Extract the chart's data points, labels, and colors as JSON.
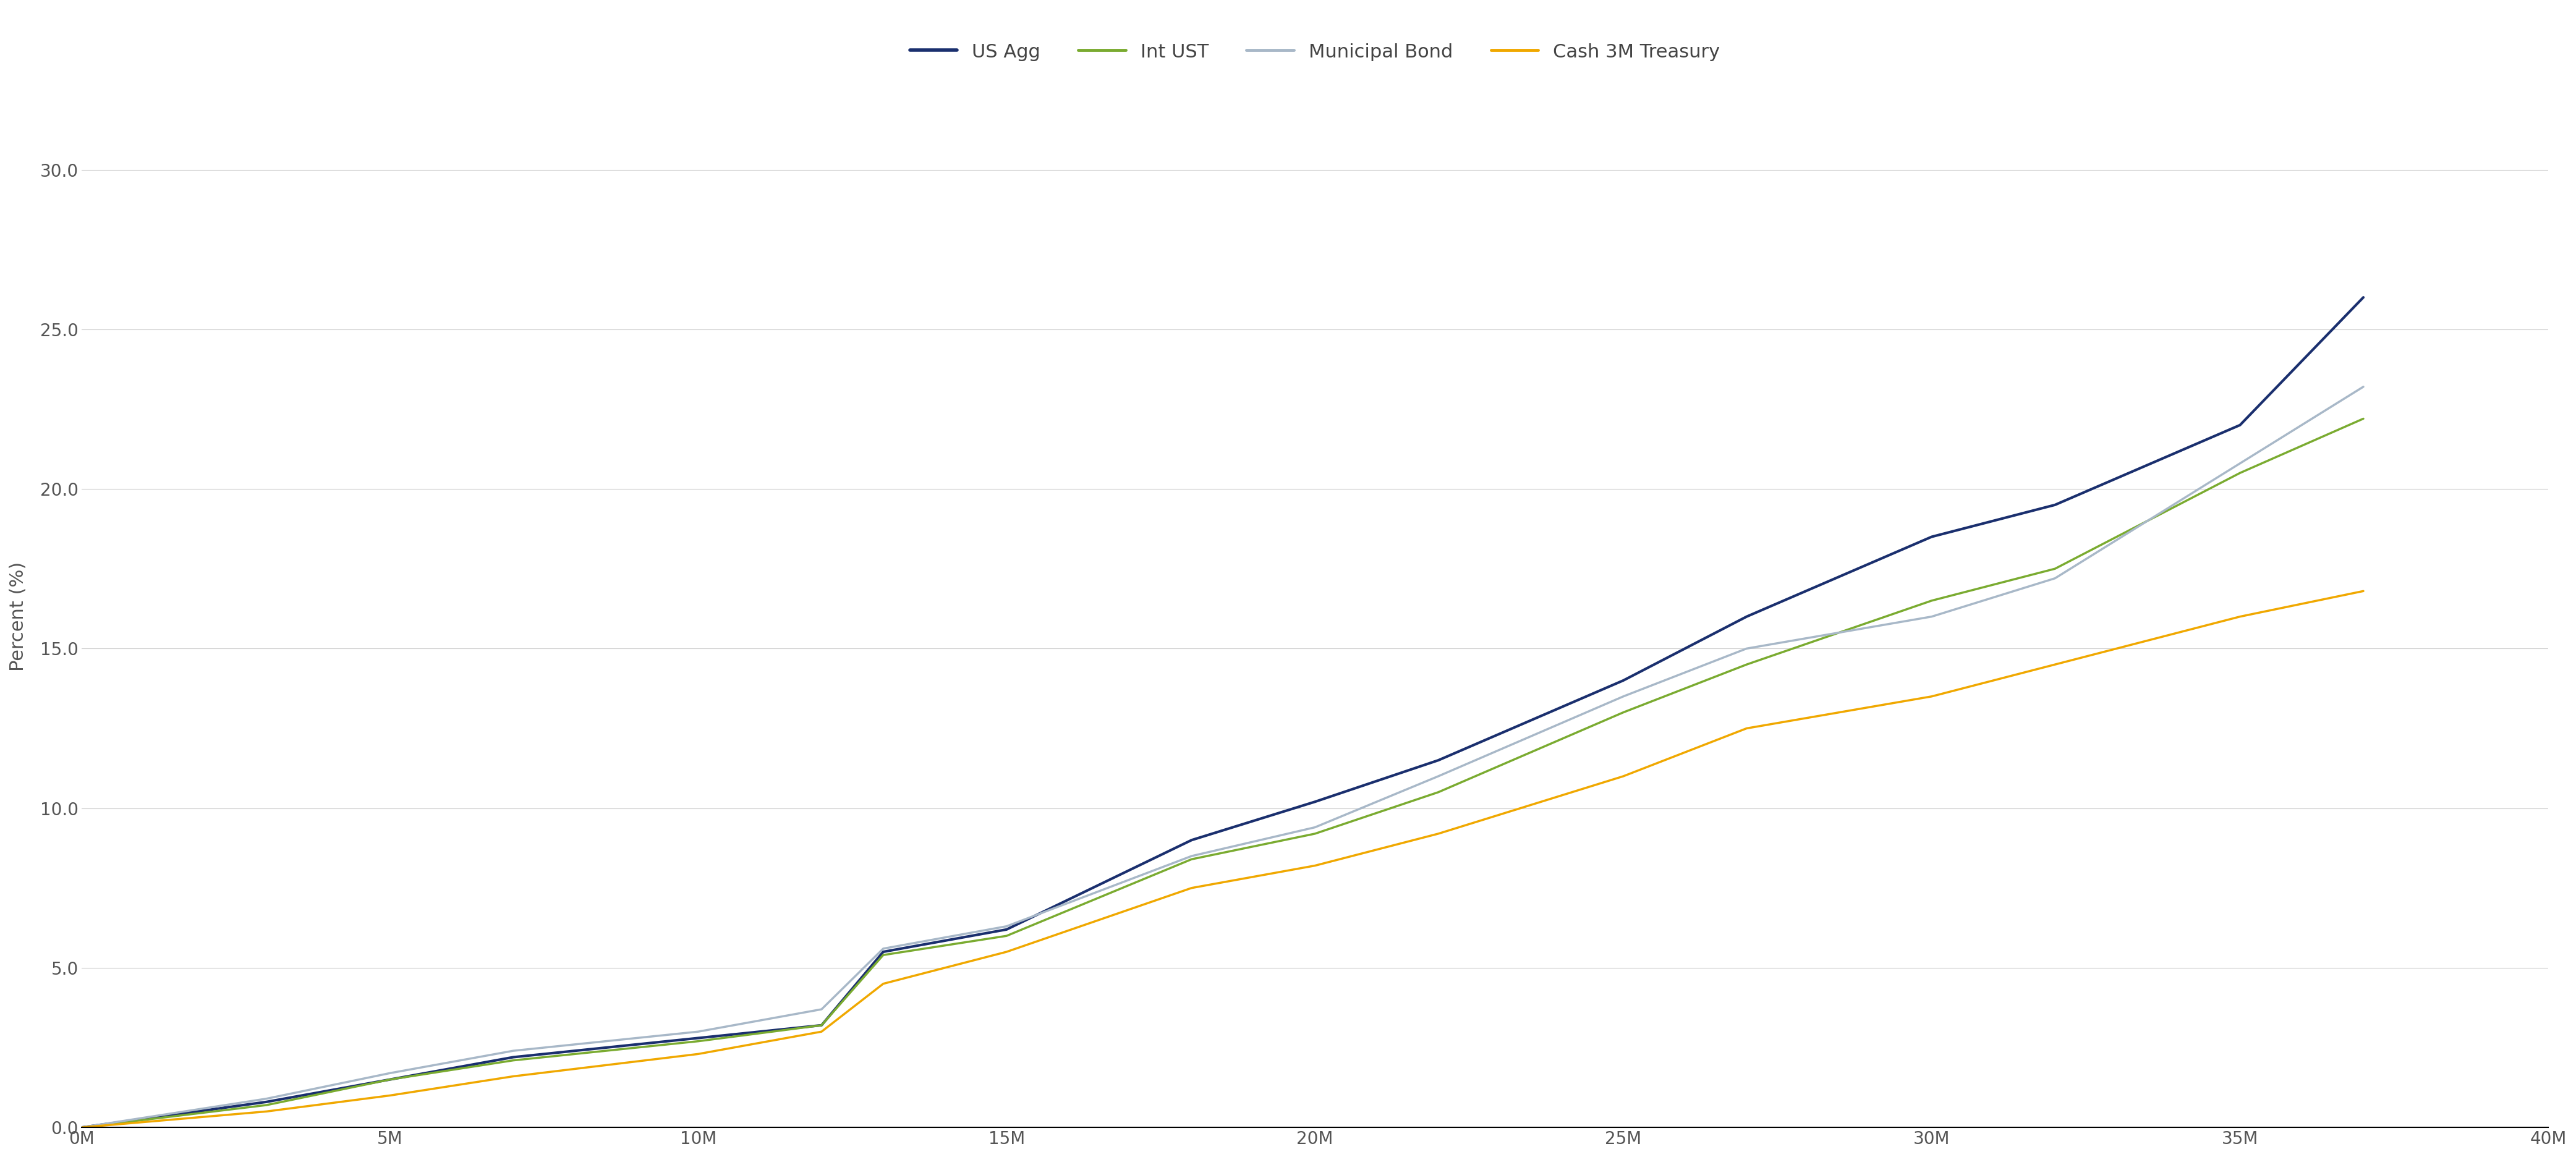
{
  "series": {
    "US Agg": {
      "x": [
        0,
        3,
        5,
        7,
        10,
        12,
        13,
        15,
        18,
        20,
        22,
        25,
        27,
        30,
        32,
        35,
        37
      ],
      "y": [
        0.0,
        0.8,
        1.5,
        2.2,
        2.8,
        3.2,
        5.5,
        6.2,
        9.0,
        10.2,
        11.5,
        14.0,
        16.0,
        18.5,
        19.5,
        22.0,
        26.0
      ],
      "color": "#1a2f6e",
      "linewidth": 3.0,
      "label": "US Agg"
    },
    "Int UST": {
      "x": [
        0,
        3,
        5,
        7,
        10,
        12,
        13,
        15,
        18,
        20,
        22,
        25,
        27,
        30,
        32,
        35,
        37
      ],
      "y": [
        0.0,
        0.7,
        1.5,
        2.1,
        2.7,
        3.2,
        5.4,
        6.0,
        8.4,
        9.2,
        10.5,
        13.0,
        14.5,
        16.5,
        17.5,
        20.5,
        22.2
      ],
      "color": "#7aab30",
      "linewidth": 2.5,
      "label": "Int UST"
    },
    "Municipal Bond": {
      "x": [
        0,
        3,
        5,
        7,
        10,
        12,
        13,
        15,
        18,
        20,
        22,
        25,
        27,
        30,
        32,
        35,
        37
      ],
      "y": [
        0.0,
        0.9,
        1.7,
        2.4,
        3.0,
        3.7,
        5.6,
        6.3,
        8.5,
        9.4,
        11.0,
        13.5,
        15.0,
        16.0,
        17.2,
        20.8,
        23.2
      ],
      "color": "#a8b8c8",
      "linewidth": 2.5,
      "label": "Municipal Bond"
    },
    "Cash 3M Treasury": {
      "x": [
        0,
        3,
        5,
        7,
        10,
        12,
        13,
        15,
        18,
        20,
        22,
        25,
        27,
        30,
        32,
        35,
        37
      ],
      "y": [
        0.0,
        0.5,
        1.0,
        1.6,
        2.3,
        3.0,
        4.5,
        5.5,
        7.5,
        8.2,
        9.2,
        11.0,
        12.5,
        13.5,
        14.5,
        16.0,
        16.8
      ],
      "color": "#f0a800",
      "linewidth": 2.5,
      "label": "Cash 3M Treasury"
    }
  },
  "series_order": [
    "US Agg",
    "Int UST",
    "Municipal Bond",
    "Cash 3M Treasury"
  ],
  "ylabel": "Percent (%)",
  "ylim": [
    0.0,
    32.0
  ],
  "xlim": [
    0,
    40
  ],
  "yticks": [
    0.0,
    5.0,
    10.0,
    15.0,
    20.0,
    25.0,
    30.0
  ],
  "xticks": [
    0,
    5,
    10,
    15,
    20,
    25,
    30,
    35,
    40
  ],
  "xtick_labels": [
    "0M",
    "5M",
    "10M",
    "15M",
    "20M",
    "25M",
    "30M",
    "35M",
    "40M"
  ],
  "background_color": "#ffffff",
  "grid_color": "#cccccc",
  "grid_linewidth": 0.8,
  "legend_fontsize": 22,
  "axis_label_fontsize": 22,
  "tick_fontsize": 20,
  "tick_color": "#555555",
  "ylabel_color": "#555555",
  "bottom_spine_color": "#000000",
  "bottom_spine_linewidth": 1.5
}
